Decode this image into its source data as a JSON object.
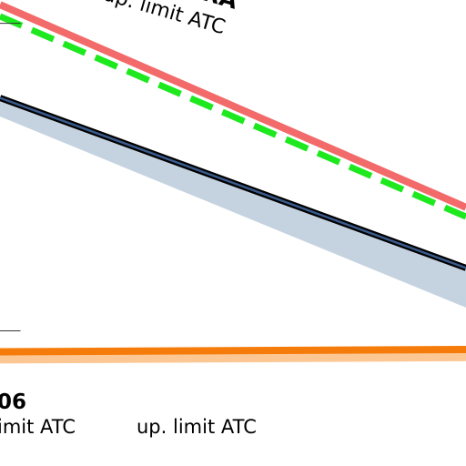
{
  "chart_data": {
    "type": "line",
    "title": "",
    "xlabel": "",
    "ylabel": "",
    "grid": false,
    "legend": "none",
    "tick_labels": [],
    "series": [
      {
        "key": "upper_red",
        "style": "line",
        "color": "#f26a6a",
        "x": [
          0,
          1
        ],
        "y": [
          0.2,
          8.9
        ]
      },
      {
        "key": "upper_dashed",
        "style": "dashed",
        "color": "#1ee81e",
        "x": [
          0,
          1
        ],
        "y": [
          0.7,
          9.3
        ]
      },
      {
        "key": "middle_line",
        "style": "line",
        "color": "#000000",
        "inner_color": "#3a5a8c",
        "x": [
          0,
          1
        ],
        "y": [
          4.2,
          11.5
        ]
      },
      {
        "key": "middle_band",
        "style": "band",
        "color": "#c5d3e0",
        "x": [
          0,
          1
        ],
        "y_low": [
          5.0,
          13.2
        ],
        "y_high": [
          4.2,
          11.5
        ]
      },
      {
        "key": "lower_line",
        "style": "line",
        "color": "#f57c0a",
        "x": [
          0,
          1
        ],
        "y": [
          15.1,
          15.0
        ]
      },
      {
        "key": "lower_band",
        "style": "band",
        "color": "#fcc793",
        "x": [
          0,
          1
        ],
        "y_low": [
          15.6,
          15.5
        ],
        "y_high": [
          15.1,
          15.0
        ]
      }
    ],
    "reference_ticks": [
      {
        "x0": -0.02,
        "x1": 0.044,
        "y": 1.0
      },
      {
        "x0": -0.02,
        "x1": 0.044,
        "y": 14.2
      }
    ],
    "x_range": [
      0,
      1
    ],
    "y_range": [
      0,
      20
    ],
    "annotations": {
      "top_bold": "RA",
      "top_sub": "it ATC up. limit ATC",
      "bottom_bold": "06",
      "bottom_left": "imit ATC",
      "bottom_right": "up. limit ATC"
    }
  }
}
